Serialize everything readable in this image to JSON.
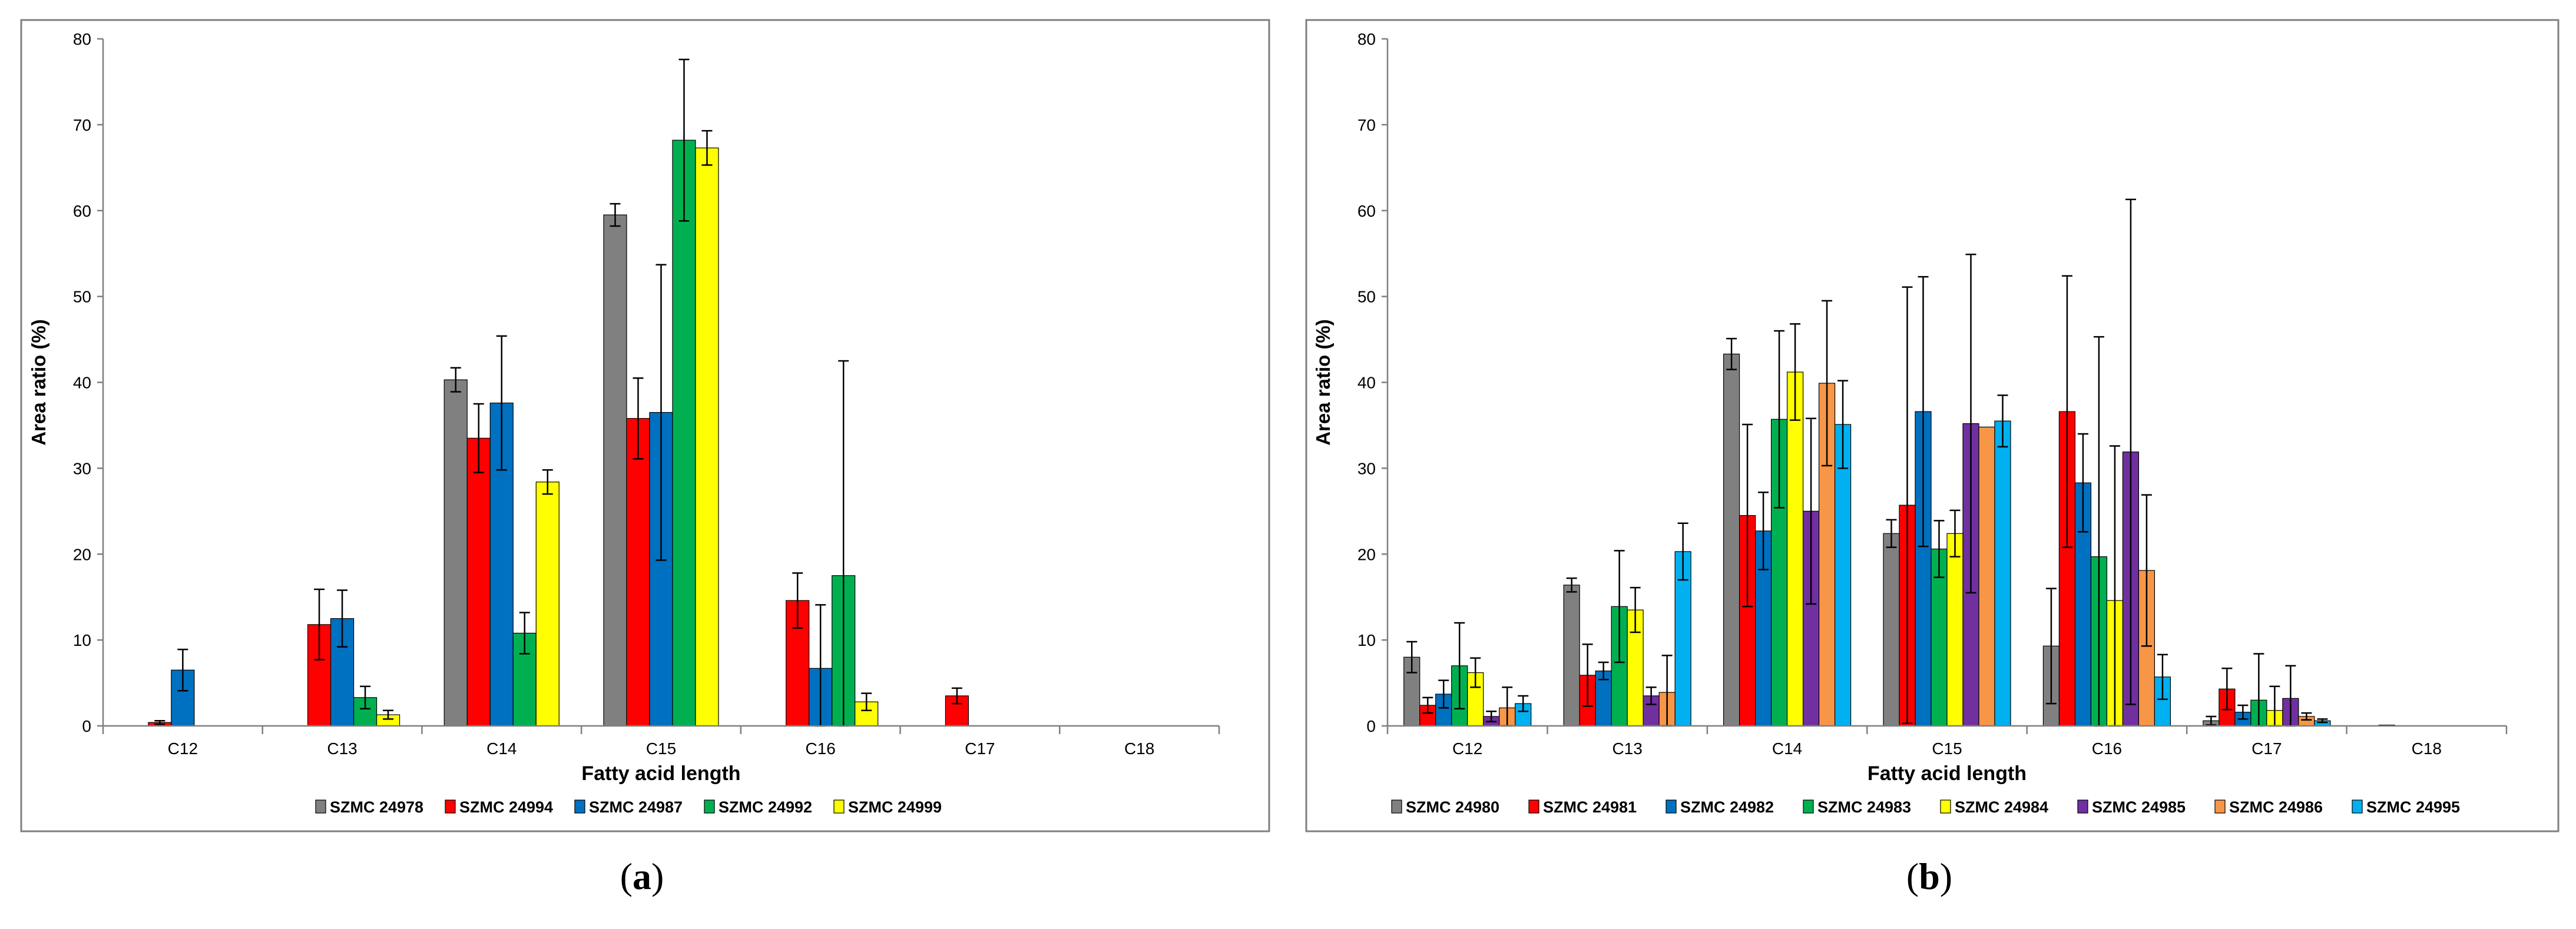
{
  "figure": {
    "panel_labels": [
      {
        "open": "(",
        "letter": "a",
        "close": ")"
      },
      {
        "open": "(",
        "letter": "b",
        "close": ")"
      }
    ]
  },
  "colors": {
    "SZMC 24978": "#808080",
    "SZMC 24994": "#ff0000",
    "SZMC 24987": "#0070c0",
    "SZMC 24992": "#00b050",
    "SZMC 24999": "#ffff00",
    "SZMC 24980": "#808080",
    "SZMC 24981": "#ff0000",
    "SZMC 24982": "#0070c0",
    "SZMC 24983": "#00b050",
    "SZMC 24984": "#ffff00",
    "SZMC 24985": "#7030a0",
    "SZMC 24986": "#f79646",
    "SZMC 24995": "#00b0f0"
  },
  "chart_data": [
    {
      "type": "bar",
      "panel": "a",
      "title": "",
      "xlabel": "Fatty acid length",
      "ylabel": "Area ratio (%)",
      "ylim": [
        0,
        80
      ],
      "yticks": [
        "0",
        "10",
        "20",
        "30",
        "40",
        "50",
        "60",
        "70",
        "80"
      ],
      "legend_position": "bottom",
      "categories": [
        "C12",
        "C13",
        "C14",
        "C15",
        "C16",
        "C17",
        "C18"
      ],
      "series": [
        {
          "name": "SZMC 24978",
          "values": [
            0,
            0,
            40.3,
            59.5,
            0,
            0,
            0
          ],
          "errors": [
            0,
            0,
            1.4,
            1.3,
            0,
            0,
            0
          ]
        },
        {
          "name": "SZMC 24994",
          "values": [
            0.4,
            11.8,
            33.5,
            35.8,
            14.6,
            3.5,
            0
          ],
          "errors": [
            0.2,
            4.1,
            4.0,
            4.7,
            3.2,
            0.9,
            0
          ]
        },
        {
          "name": "SZMC 24987",
          "values": [
            6.5,
            12.5,
            37.6,
            36.5,
            6.7,
            0,
            0
          ],
          "errors": [
            2.4,
            3.3,
            7.8,
            17.2,
            7.4,
            0,
            0
          ]
        },
        {
          "name": "SZMC 24992",
          "values": [
            0,
            3.3,
            10.8,
            68.2,
            17.5,
            0,
            0
          ],
          "errors": [
            0,
            1.3,
            2.4,
            9.4,
            25.0,
            0,
            0
          ]
        },
        {
          "name": "SZMC 24999",
          "values": [
            0,
            1.3,
            28.4,
            67.3,
            2.8,
            0,
            0
          ],
          "errors": [
            0,
            0.5,
            1.4,
            2.0,
            1.0,
            0,
            0
          ]
        }
      ]
    },
    {
      "type": "bar",
      "panel": "b",
      "title": "",
      "xlabel": "Fatty acid length",
      "ylabel": "Area ratio (%)",
      "ylim": [
        0,
        80
      ],
      "yticks": [
        "0",
        "10",
        "20",
        "30",
        "40",
        "50",
        "60",
        "70",
        "80"
      ],
      "legend_position": "bottom",
      "categories": [
        "C12",
        "C13",
        "C14",
        "C15",
        "C16",
        "C17",
        "C18"
      ],
      "series": [
        {
          "name": "SZMC 24980",
          "values": [
            8.0,
            16.4,
            43.3,
            22.4,
            9.3,
            0.6,
            0
          ],
          "errors": [
            1.8,
            0.8,
            1.8,
            1.6,
            6.7,
            0.5,
            0
          ]
        },
        {
          "name": "SZMC 24981",
          "values": [
            2.4,
            5.9,
            24.5,
            25.7,
            36.6,
            4.3,
            0.1
          ],
          "errors": [
            0.9,
            3.6,
            10.6,
            25.4,
            15.8,
            2.4,
            0
          ]
        },
        {
          "name": "SZMC 24982",
          "values": [
            3.7,
            6.4,
            22.7,
            36.6,
            28.3,
            1.6,
            0
          ],
          "errors": [
            1.6,
            1.0,
            4.5,
            15.7,
            5.7,
            0.8,
            0
          ]
        },
        {
          "name": "SZMC 24983",
          "values": [
            7.0,
            13.9,
            35.7,
            20.6,
            19.7,
            3.0,
            0
          ],
          "errors": [
            5.0,
            6.5,
            10.3,
            3.3,
            25.6,
            5.4,
            0
          ]
        },
        {
          "name": "SZMC 24984",
          "values": [
            6.2,
            13.5,
            41.2,
            22.4,
            14.6,
            1.8,
            0
          ],
          "errors": [
            1.7,
            2.6,
            5.6,
            2.7,
            18.0,
            2.8,
            0
          ]
        },
        {
          "name": "SZMC 24985",
          "values": [
            1.1,
            3.5,
            25.0,
            35.2,
            31.9,
            3.2,
            0
          ],
          "errors": [
            0.6,
            1.0,
            10.8,
            19.7,
            29.4,
            3.8,
            0
          ]
        },
        {
          "name": "SZMC 24986",
          "values": [
            2.1,
            3.9,
            39.9,
            34.8,
            18.1,
            1.1,
            0
          ],
          "errors": [
            2.4,
            4.3,
            9.6,
            0,
            8.8,
            0.4,
            0
          ]
        },
        {
          "name": "SZMC 24995",
          "values": [
            2.6,
            20.3,
            35.1,
            35.5,
            5.7,
            0.6,
            0
          ],
          "errors": [
            0.9,
            3.3,
            5.1,
            3.0,
            2.6,
            0.2,
            0
          ]
        }
      ]
    }
  ]
}
